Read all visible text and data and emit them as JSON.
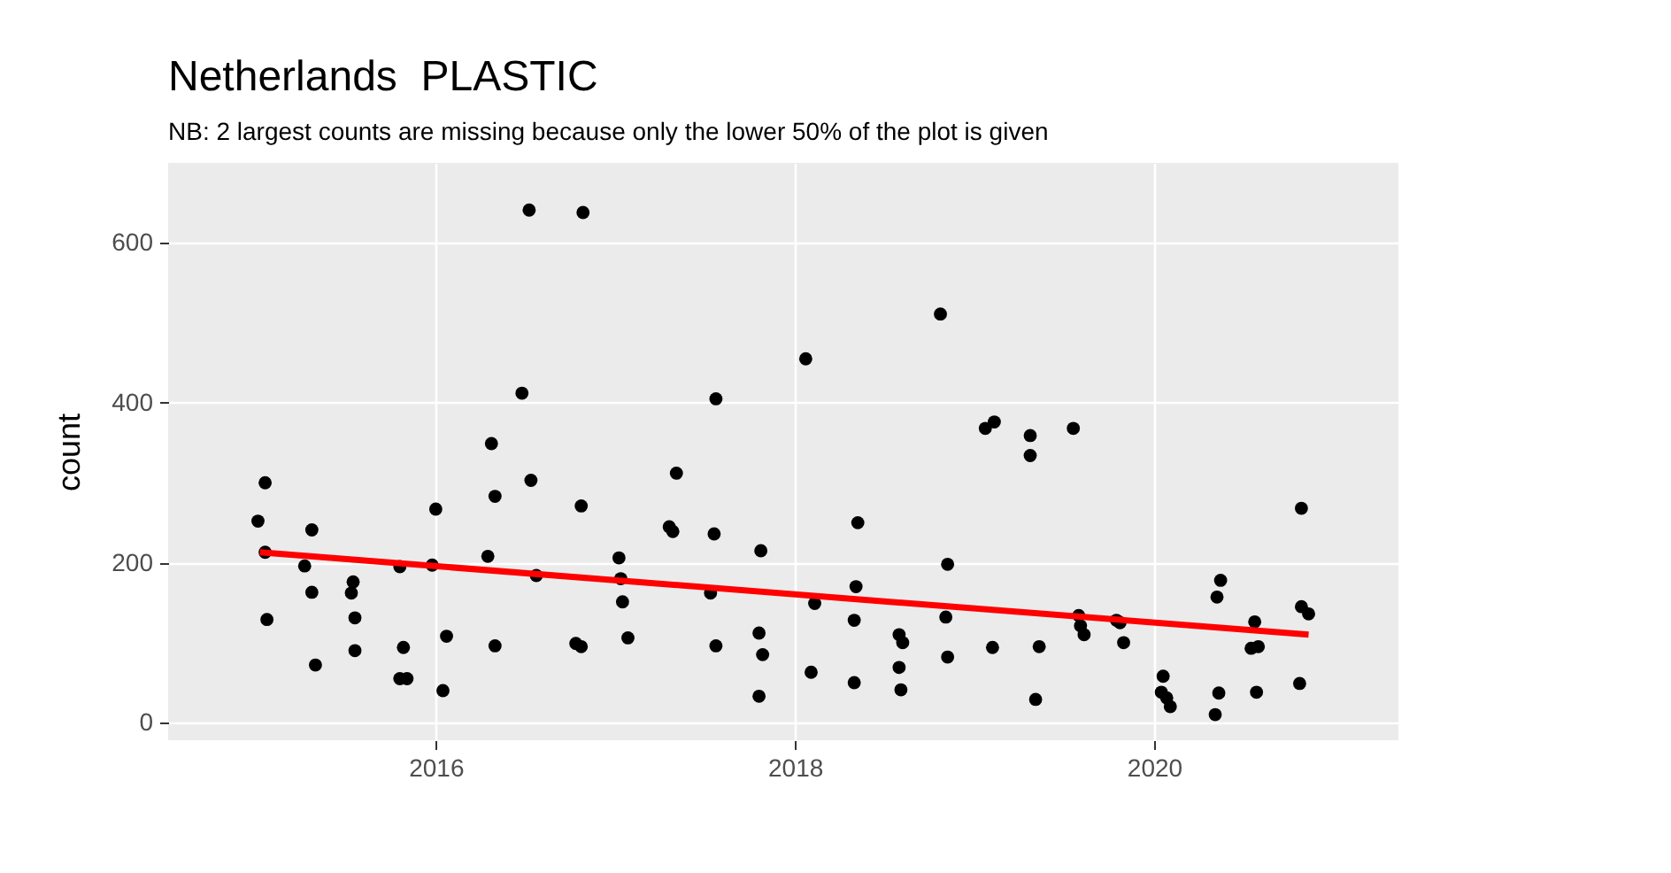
{
  "chart_data": {
    "type": "scatter",
    "title": "Netherlands  PLASTIC",
    "subtitle": "NB: 2 largest counts are missing because only the lower 50% of the plot is given",
    "ylabel": "count",
    "xlim": [
      2014.51,
      2021.36
    ],
    "ylim": [
      -22,
      700
    ],
    "xticks": [
      2016,
      2018,
      2020
    ],
    "yticks": [
      0,
      200,
      400,
      600
    ],
    "grid": true,
    "series": [
      {
        "type": "scatter",
        "color": "#000000",
        "marker": "circle",
        "x": [
          2015.05,
          2015.01,
          2015.05,
          2015.06,
          2015.31,
          2015.27,
          2015.31,
          2015.33,
          2015.54,
          2015.53,
          2015.55,
          2015.55,
          2015.8,
          2015.82,
          2015.8,
          2015.84,
          2016.0,
          2015.98,
          2016.06,
          2016.04,
          2016.31,
          2016.33,
          2016.29,
          2016.33,
          2016.48,
          2016.53,
          2016.56,
          2016.52,
          2016.82,
          2016.81,
          2016.78,
          2016.81,
          2017.02,
          2017.03,
          2017.04,
          2017.07,
          2017.34,
          2017.3,
          2017.32,
          2017.53,
          2017.56,
          2017.55,
          2017.56,
          2017.81,
          2017.8,
          2017.82,
          2017.8,
          2018.06,
          2018.11,
          2018.09,
          2018.35,
          2018.34,
          2018.33,
          2018.33,
          2018.58,
          2018.6,
          2018.58,
          2018.59,
          2018.81,
          2018.85,
          2018.84,
          2018.85,
          2019.06,
          2019.11,
          2019.1,
          2019.31,
          2019.31,
          2019.55,
          2019.36,
          2019.34,
          2019.58,
          2019.59,
          2019.61,
          2019.79,
          2019.81,
          2019.83,
          2020.05,
          2020.04,
          2020.07,
          2020.09,
          2020.34,
          2020.36,
          2020.37,
          2020.35,
          2020.56,
          2020.54,
          2020.58,
          2020.57,
          2020.82,
          2020.82,
          2020.86,
          2020.81
        ],
        "values": [
          300,
          252,
          213,
          129,
          241,
          196,
          163,
          72,
          176,
          162,
          131,
          90,
          195,
          94,
          55,
          55,
          267,
          197,
          108,
          40,
          349,
          283,
          208,
          96,
          412,
          303,
          184,
          641,
          638,
          271,
          99,
          95,
          206,
          180,
          151,
          106,
          312,
          245,
          239,
          162,
          405,
          236,
          96,
          215,
          112,
          85,
          33,
          455,
          149,
          63,
          250,
          170,
          128,
          50,
          110,
          100,
          69,
          41,
          511,
          198,
          132,
          82,
          368,
          376,
          94,
          359,
          334,
          368,
          95,
          29,
          134,
          121,
          110,
          128,
          125,
          100,
          58,
          38,
          31,
          20,
          10,
          37,
          178,
          157,
          126,
          93,
          95,
          38,
          268,
          145,
          136,
          49
        ]
      },
      {
        "type": "line",
        "color": "#ff0000",
        "x": [
          2015.02,
          2020.86
        ],
        "values": [
          213,
          110
        ]
      }
    ]
  }
}
